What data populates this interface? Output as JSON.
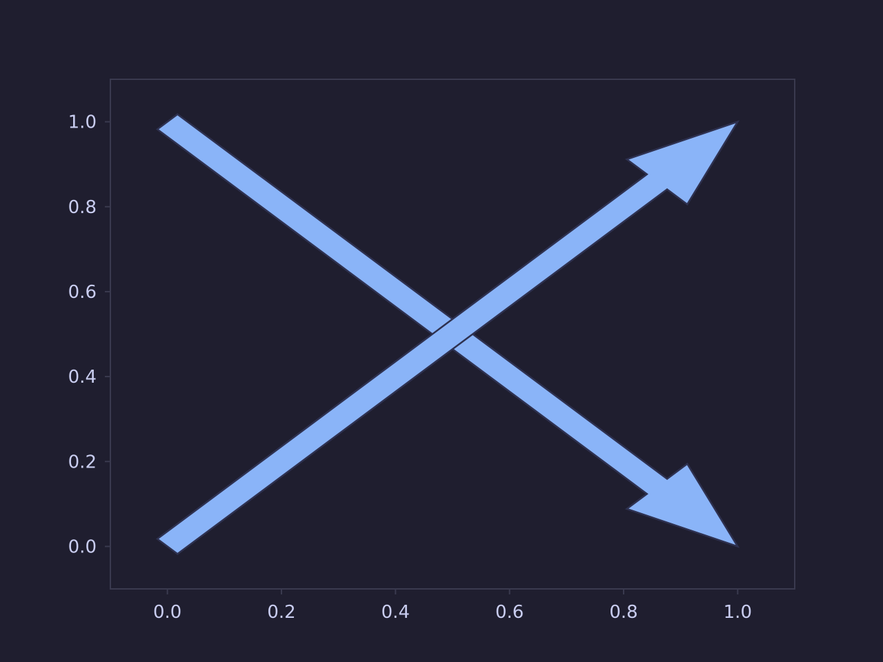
{
  "chart_data": {
    "type": "arrows",
    "title": "",
    "xlabel": "",
    "ylabel": "",
    "xlim": [
      -0.1,
      1.1
    ],
    "ylim": [
      -0.1,
      1.1
    ],
    "xticks": [
      "0.0",
      "0.2",
      "0.4",
      "0.6",
      "0.8",
      "1.0"
    ],
    "yticks": [
      "0.0",
      "0.2",
      "0.4",
      "0.6",
      "0.8",
      "1.0"
    ],
    "grid": false,
    "legend": "none",
    "arrows": [
      {
        "x": 0.0,
        "y": 1.0,
        "dx": 1.0,
        "dy": -1.0,
        "width": 0.05,
        "head_width": 0.15,
        "head_length": 0.2
      },
      {
        "x": 0.0,
        "y": 0.0,
        "dx": 1.0,
        "dy": 1.0,
        "width": 0.05,
        "head_width": 0.15,
        "head_length": 0.2
      }
    ],
    "colors": {
      "background": "#1f1e2f",
      "axes_frame": "#3a3a4f",
      "tick_text": "#c9cdf0",
      "arrow_fill": "#8ab4f8",
      "arrow_edge": "#2e3150"
    }
  }
}
